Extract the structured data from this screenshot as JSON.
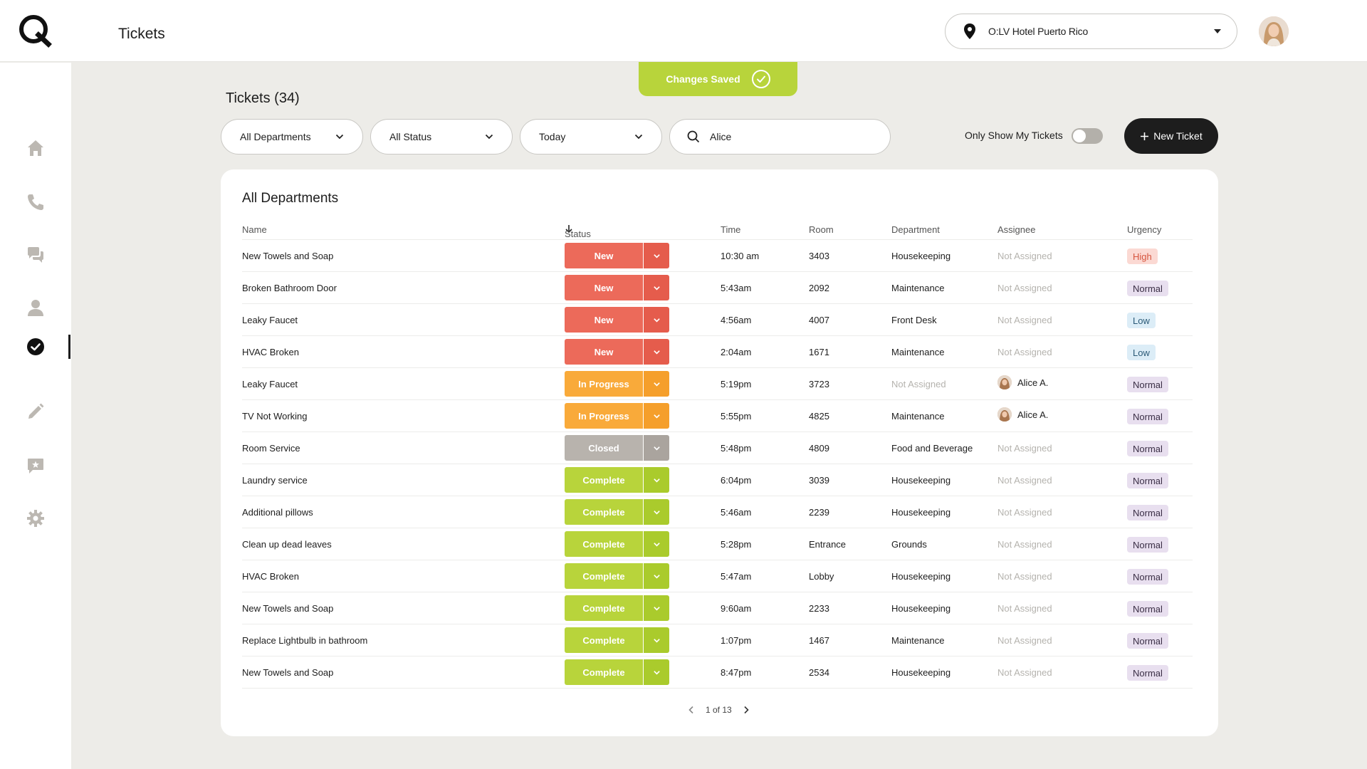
{
  "header": {
    "page_title": "Tickets",
    "hotel_select_label": "O:LV Hotel Puerto Rico"
  },
  "toast": {
    "label": "Changes Saved"
  },
  "section_title": "Tickets (34)",
  "filters": {
    "department": "All Departments",
    "status": "All Status",
    "date": "Today",
    "search_value": "Alice",
    "toggle_label": "Only Show My Tickets",
    "toggle_on": false,
    "new_ticket_label": "New Ticket"
  },
  "card": {
    "title": "All Departments",
    "columns": {
      "name": "Name",
      "status": "Status",
      "time": "Time",
      "room": "Room",
      "department": "Department",
      "assignee": "Assignee",
      "urgency": "Urgency"
    },
    "rows": [
      {
        "name": "New Towels and Soap",
        "status": "New",
        "time": "10:30 am",
        "room": "3403",
        "department": "Housekeeping",
        "assignee": "Not Assigned",
        "urgency": "High"
      },
      {
        "name": "Broken Bathroom Door",
        "status": "New",
        "time": "5:43am",
        "room": "2092",
        "department": "Maintenance",
        "assignee": "Not Assigned",
        "urgency": "Normal"
      },
      {
        "name": "Leaky Faucet",
        "status": "New",
        "time": "4:56am",
        "room": "4007",
        "department": "Front Desk",
        "assignee": "Not Assigned",
        "urgency": "Low"
      },
      {
        "name": "HVAC Broken",
        "status": "New",
        "time": "2:04am",
        "room": "1671",
        "department": "Maintenance",
        "assignee": "Not Assigned",
        "urgency": "Low"
      },
      {
        "name": "Leaky Faucet",
        "status": "In Progress",
        "time": "5:19pm",
        "room": "3723",
        "department": "Not Assigned",
        "assignee": "Alice A.",
        "urgency": "Normal"
      },
      {
        "name": "TV Not Working",
        "status": "In Progress",
        "time": "5:55pm",
        "room": "4825",
        "department": "Maintenance",
        "assignee": "Alice A.",
        "urgency": "Normal"
      },
      {
        "name": "Room Service",
        "status": "Closed",
        "time": "5:48pm",
        "room": "4809",
        "department": "Food and Beverage",
        "assignee": "Not Assigned",
        "urgency": "Normal"
      },
      {
        "name": "Laundry service",
        "status": "Complete",
        "time": "6:04pm",
        "room": "3039",
        "department": "Housekeeping",
        "assignee": "Not Assigned",
        "urgency": "Normal"
      },
      {
        "name": "Additional pillows",
        "status": "Complete",
        "time": "5:46am",
        "room": "2239",
        "department": "Housekeeping",
        "assignee": "Not Assigned",
        "urgency": "Normal"
      },
      {
        "name": "Clean up dead leaves",
        "status": "Complete",
        "time": "5:28pm",
        "room": "Entrance",
        "department": "Grounds",
        "assignee": "Not Assigned",
        "urgency": "Normal"
      },
      {
        "name": "HVAC Broken",
        "status": "Complete",
        "time": "5:47am",
        "room": "Lobby",
        "department": "Housekeeping",
        "assignee": "Not Assigned",
        "urgency": "Normal"
      },
      {
        "name": "New Towels and Soap",
        "status": "Complete",
        "time": "9:60am",
        "room": "2233",
        "department": "Housekeeping",
        "assignee": "Not Assigned",
        "urgency": "Normal"
      },
      {
        "name": "Replace Lightbulb in bathroom",
        "status": "Complete",
        "time": "1:07pm",
        "room": "1467",
        "department": "Maintenance",
        "assignee": "Not Assigned",
        "urgency": "Normal"
      },
      {
        "name": "New Towels and Soap",
        "status": "Complete",
        "time": "8:47pm",
        "room": "2534",
        "department": "Housekeeping",
        "assignee": "Not Assigned",
        "urgency": "Normal"
      }
    ]
  },
  "pager": {
    "label": "1 of 13"
  },
  "colors": {
    "status_new": "#ec6a5a",
    "status_new_drop": "#e55c4c",
    "status_in_progress": "#f9aa3a",
    "status_in_progress_drop": "#f59f2b",
    "status_closed": "#b8b3ad",
    "status_closed_drop": "#aaa49e",
    "status_complete": "#b8d43b",
    "status_complete_drop": "#aacb2c",
    "toast": "#b8d43b",
    "button_dark": "#1d1d1d"
  },
  "icons": {
    "sidebar": [
      "home-icon",
      "phone-icon",
      "chat-icon",
      "user-icon",
      "tickets-check-icon",
      "pencil-icon",
      "feedback-icon",
      "gear-icon"
    ]
  }
}
